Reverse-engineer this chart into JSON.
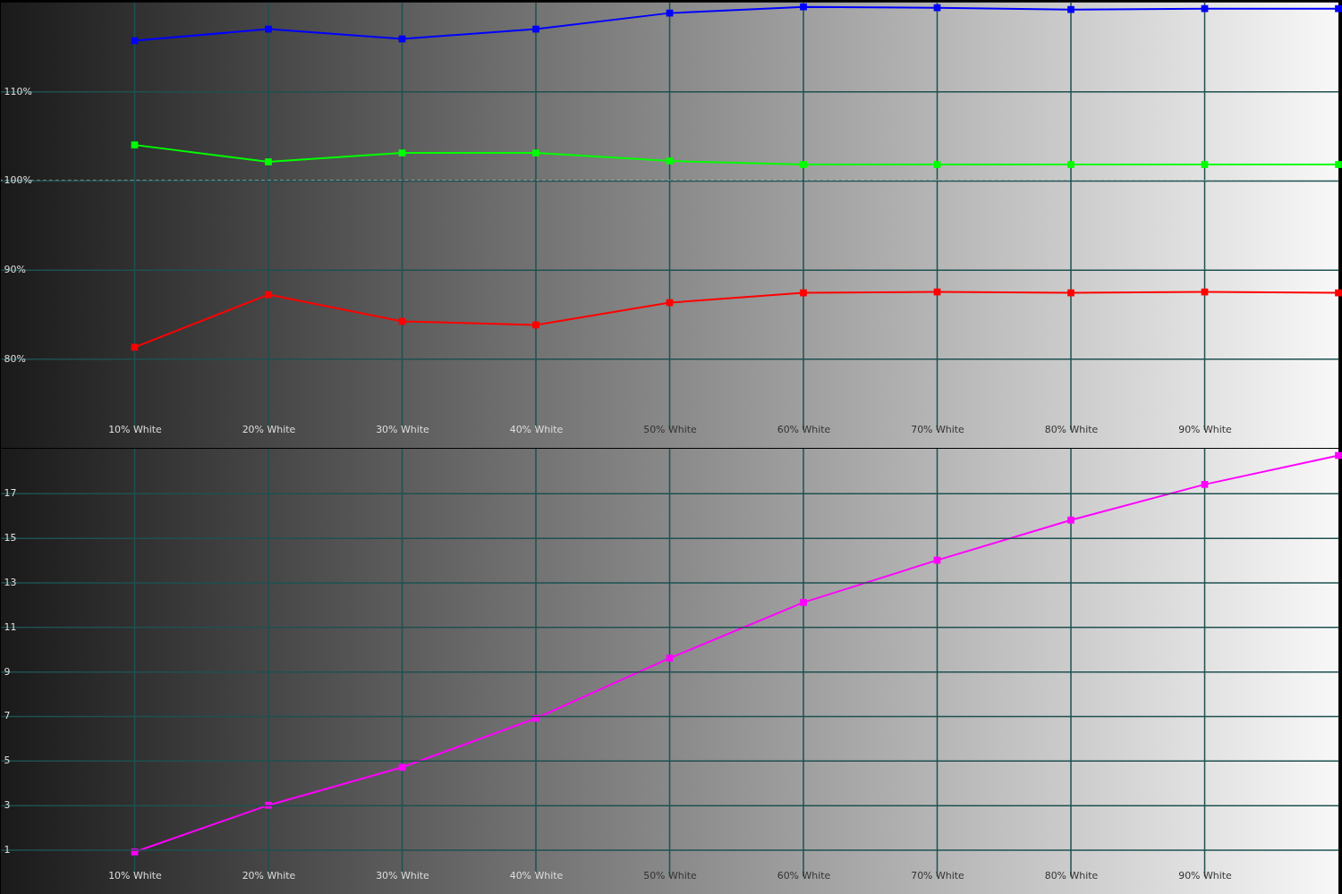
{
  "chart_data": [
    {
      "type": "line",
      "x": [
        10,
        20,
        30,
        40,
        50,
        60,
        70,
        80,
        90,
        100
      ],
      "xlim": [
        0,
        100
      ],
      "xticks": [
        {
          "value": 10,
          "label": "10% White"
        },
        {
          "value": 20,
          "label": "20% White"
        },
        {
          "value": 30,
          "label": "30% White"
        },
        {
          "value": 40,
          "label": "40% White"
        },
        {
          "value": 50,
          "label": "50% White"
        },
        {
          "value": 60,
          "label": "60% White"
        },
        {
          "value": 70,
          "label": "70% White"
        },
        {
          "value": 80,
          "label": "80% White"
        },
        {
          "value": 90,
          "label": "90% White"
        }
      ],
      "ylim": [
        70,
        120
      ],
      "yticks": [
        {
          "value": 80,
          "label": "80%"
        },
        {
          "value": 90,
          "label": "90%"
        },
        {
          "value": 100,
          "label": "100%"
        },
        {
          "value": 110,
          "label": "110%"
        }
      ],
      "series": [
        {
          "color": "#0000ff",
          "values": [
            115.7,
            117.0,
            115.9,
            117.0,
            118.8,
            119.5,
            119.4,
            119.2,
            119.3,
            119.3
          ]
        },
        {
          "color": "#00ff00",
          "values": [
            104.0,
            102.1,
            103.1,
            103.1,
            102.2,
            101.8,
            101.8,
            101.8,
            101.8,
            101.8
          ]
        },
        {
          "color": "#ff0000",
          "values": [
            81.3,
            87.2,
            84.2,
            83.8,
            86.3,
            87.4,
            87.5,
            87.4,
            87.5,
            87.4
          ]
        }
      ],
      "ref_lines": [
        {
          "axis": "y",
          "value": 100,
          "color": "#ffffff",
          "line_style": "dashed"
        }
      ],
      "grid": true,
      "marker": "square",
      "line_style": "solid"
    },
    {
      "type": "line",
      "x": [
        10,
        20,
        30,
        40,
        50,
        60,
        70,
        80,
        90,
        100
      ],
      "xlim": [
        0,
        100
      ],
      "xticks": [
        {
          "value": 10,
          "label": "10% White"
        },
        {
          "value": 20,
          "label": "20% White"
        },
        {
          "value": 30,
          "label": "30% White"
        },
        {
          "value": 40,
          "label": "40% White"
        },
        {
          "value": 50,
          "label": "50% White"
        },
        {
          "value": 60,
          "label": "60% White"
        },
        {
          "value": 70,
          "label": "70% White"
        },
        {
          "value": 80,
          "label": "80% White"
        },
        {
          "value": 90,
          "label": "90% White"
        }
      ],
      "ylim": [
        -1,
        19
      ],
      "yticks": [
        1,
        3,
        5,
        7,
        9,
        11,
        13,
        15,
        17
      ],
      "series": [
        {
          "color": "#ff00ff",
          "values": [
            0.9,
            3.0,
            4.7,
            6.9,
            9.6,
            12.1,
            14.0,
            15.8,
            17.4,
            18.7
          ]
        }
      ],
      "grid": true,
      "marker": "square",
      "line_style": "solid"
    }
  ]
}
